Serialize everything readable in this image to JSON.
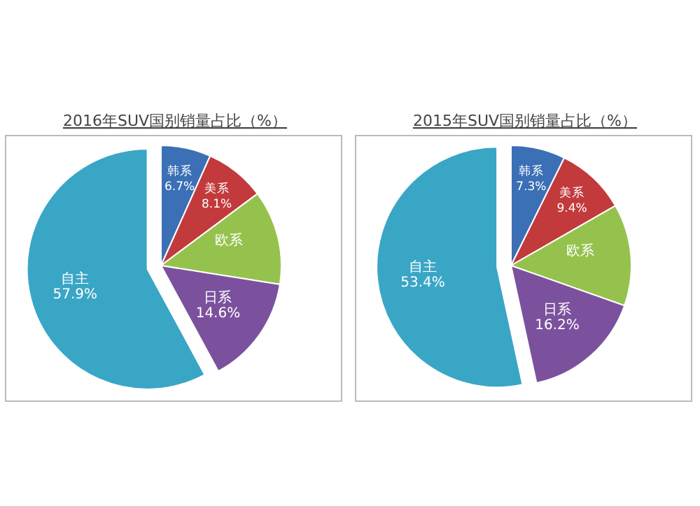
{
  "chart_data": [
    {
      "type": "pie",
      "title": "2016年SUV国别销量占比（%）",
      "categories": [
        "韩系",
        "美系",
        "欧系",
        "日系",
        "自主"
      ],
      "values": [
        6.7,
        8.1,
        12.7,
        14.6,
        57.9
      ],
      "value_labels": [
        "6.7%",
        "8.1%",
        null,
        "14.6%",
        "57.9%"
      ],
      "colors": [
        "#3b6fb6",
        "#c23a3c",
        "#95c24d",
        "#7b519e",
        "#3aa6c6"
      ],
      "legend": false
    },
    {
      "type": "pie",
      "title": "2015年SUV国别销量占比（%）",
      "categories": [
        "韩系",
        "美系",
        "欧系",
        "日系",
        "自主"
      ],
      "values": [
        7.3,
        9.4,
        13.7,
        16.2,
        53.4
      ],
      "value_labels": [
        "7.3%",
        "9.4%",
        null,
        "16.2%",
        "53.4%"
      ],
      "colors": [
        "#3b6fb6",
        "#c23a3c",
        "#95c24d",
        "#7b519e",
        "#3aa6c6"
      ],
      "legend": false
    }
  ]
}
